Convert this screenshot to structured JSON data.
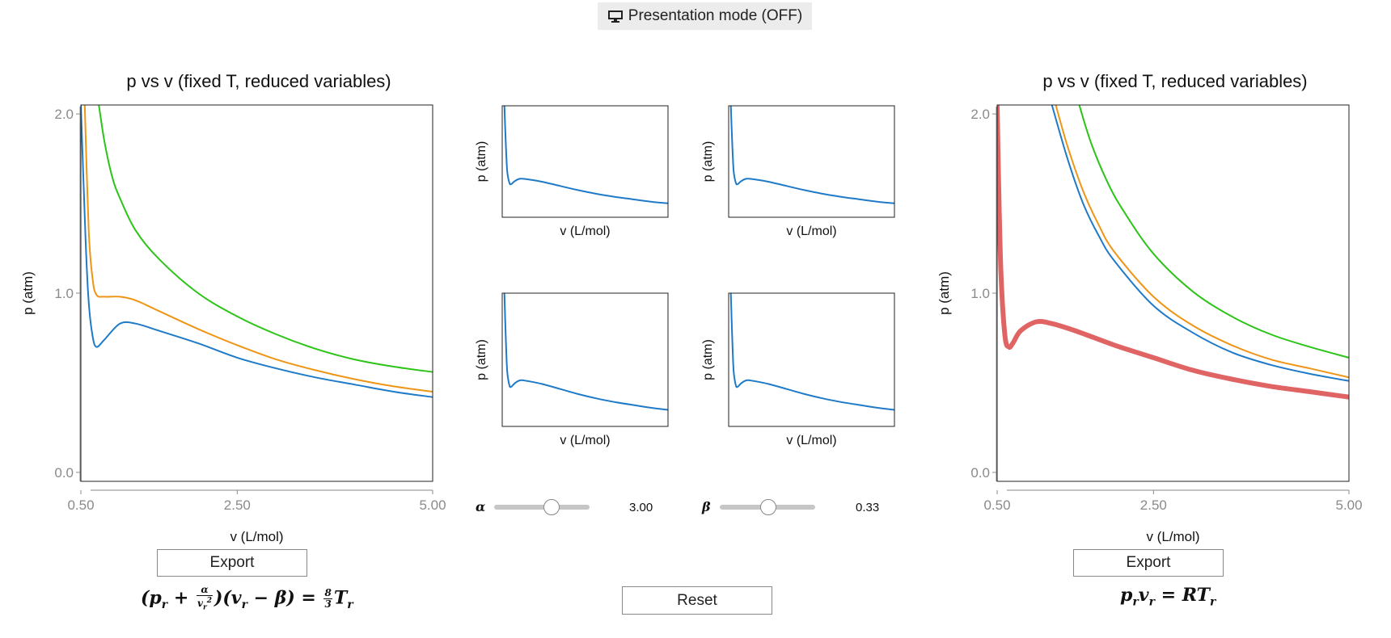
{
  "presentation_button": {
    "icon": "monitor-icon",
    "label": "Presentation mode (OFF)"
  },
  "colors": {
    "blue": "#1f7ac8",
    "orange": "#ef9516",
    "green": "#2cc418",
    "red": "#e06464",
    "axis_gray": "#8a8a8a"
  },
  "left_plot": {
    "title": "p vs v (fixed T, reduced variables)",
    "export_label": "Export",
    "formula": {
      "part1": "(p",
      "sub_r1": "r",
      "plus": " + ",
      "frac_num": "α",
      "frac_den": "v",
      "frac_den_sub": "r",
      "frac_den_sup": "2",
      "part2": ")(v",
      "sub_r2": "r",
      "minus_beta": " − β) = ",
      "frac2_num": "8",
      "frac2_den": "3",
      "T": "T",
      "sub_r3": "r"
    }
  },
  "right_plot": {
    "title": "p vs v (fixed T, reduced variables)",
    "export_label": "Export",
    "formula": {
      "p": "p",
      "sub1": "r",
      "v": "v",
      "sub2": "r",
      "eq": " = RT",
      "sub3": "r"
    }
  },
  "mini_plots": [
    {
      "xlabel": "v (L/mol)",
      "ylabel": "p (atm)"
    },
    {
      "xlabel": "v (L/mol)",
      "ylabel": "p (atm)"
    },
    {
      "xlabel": "v (L/mol)",
      "ylabel": "p (atm)"
    },
    {
      "xlabel": "v (L/mol)",
      "ylabel": "p (atm)"
    }
  ],
  "sliders": {
    "alpha": {
      "label": "α",
      "value": "3.00",
      "fraction": 0.6
    },
    "beta": {
      "label": "β",
      "value": "0.33",
      "fraction": 0.5
    }
  },
  "reset_label": "Reset",
  "chart_data": [
    {
      "type": "line",
      "title": "p vs v (fixed T, reduced variables)",
      "xlabel": "v (L/mol)",
      "ylabel": "p (atm)",
      "xlim": [
        0.5,
        5.0
      ],
      "ylim": [
        -0.05,
        2.05
      ],
      "xticks": [
        "0.50",
        "2.50",
        "5.00"
      ],
      "yticks": [
        "0.0",
        "1.0",
        "2.0"
      ],
      "series": [
        {
          "color": "#1f7ac8",
          "x": [
            0.5,
            0.56,
            0.6,
            0.65,
            0.7,
            0.8,
            1.0,
            1.2,
            1.5,
            2.0,
            2.5,
            3.0,
            3.5,
            4.0,
            4.5,
            5.0
          ],
          "y": [
            2.05,
            1.3,
            0.95,
            0.76,
            0.7,
            0.74,
            0.83,
            0.83,
            0.79,
            0.72,
            0.64,
            0.58,
            0.53,
            0.49,
            0.45,
            0.42
          ]
        },
        {
          "color": "#ef9516",
          "x": [
            0.55,
            0.6,
            0.65,
            0.7,
            0.8,
            1.0,
            1.2,
            1.5,
            2.0,
            2.5,
            3.0,
            3.5,
            4.0,
            4.5,
            5.0
          ],
          "y": [
            2.05,
            1.35,
            1.08,
            0.99,
            0.98,
            0.98,
            0.96,
            0.9,
            0.8,
            0.71,
            0.63,
            0.57,
            0.52,
            0.48,
            0.45
          ]
        },
        {
          "color": "#2cc418",
          "x": [
            0.73,
            0.8,
            0.9,
            1.0,
            1.2,
            1.5,
            2.0,
            2.5,
            3.0,
            3.5,
            4.0,
            4.5,
            5.0
          ],
          "y": [
            2.05,
            1.85,
            1.65,
            1.53,
            1.35,
            1.19,
            1.0,
            0.87,
            0.77,
            0.69,
            0.63,
            0.59,
            0.56
          ]
        }
      ]
    },
    {
      "type": "line",
      "xlabel": "v (L/mol)",
      "ylabel": "p (atm)",
      "xlim": [
        0.4,
        5.0
      ],
      "ylim": [
        0.2,
        2.05
      ],
      "series": [
        {
          "color": "#1f7ac8",
          "x": [
            0.46,
            0.5,
            0.54,
            0.6,
            0.65,
            0.75,
            0.9,
            1.1,
            1.5,
            2.0,
            2.5,
            3.0,
            3.5,
            4.0,
            4.5,
            5.0
          ],
          "y": [
            2.05,
            1.4,
            0.96,
            0.77,
            0.75,
            0.8,
            0.84,
            0.83,
            0.79,
            0.72,
            0.65,
            0.59,
            0.54,
            0.5,
            0.46,
            0.43
          ]
        }
      ]
    },
    {
      "type": "line",
      "xlabel": "v (L/mol)",
      "ylabel": "p (atm)",
      "xlim": [
        0.4,
        5.0
      ],
      "ylim": [
        0.2,
        2.05
      ],
      "series": [
        {
          "color": "#1f7ac8",
          "x": [
            0.46,
            0.5,
            0.54,
            0.6,
            0.65,
            0.75,
            0.9,
            1.1,
            1.5,
            2.0,
            2.5,
            3.0,
            3.5,
            4.0,
            4.5,
            5.0
          ],
          "y": [
            2.05,
            1.4,
            0.96,
            0.77,
            0.75,
            0.8,
            0.84,
            0.83,
            0.79,
            0.72,
            0.65,
            0.59,
            0.54,
            0.5,
            0.46,
            0.43
          ]
        }
      ]
    },
    {
      "type": "line",
      "xlabel": "v (L/mol)",
      "ylabel": "p (atm)",
      "xlim": [
        0.4,
        5.0
      ],
      "ylim": [
        0.2,
        2.05
      ],
      "series": [
        {
          "color": "#1f7ac8",
          "x": [
            0.46,
            0.5,
            0.54,
            0.6,
            0.65,
            0.75,
            0.9,
            1.1,
            1.5,
            2.0,
            2.5,
            3.0,
            3.5,
            4.0,
            4.5,
            5.0
          ],
          "y": [
            2.05,
            1.4,
            0.96,
            0.77,
            0.75,
            0.8,
            0.84,
            0.83,
            0.79,
            0.72,
            0.65,
            0.59,
            0.54,
            0.5,
            0.46,
            0.43
          ]
        }
      ]
    },
    {
      "type": "line",
      "xlabel": "v (L/mol)",
      "ylabel": "p (atm)",
      "xlim": [
        0.4,
        5.0
      ],
      "ylim": [
        0.2,
        2.05
      ],
      "series": [
        {
          "color": "#1f7ac8",
          "x": [
            0.46,
            0.5,
            0.54,
            0.6,
            0.65,
            0.75,
            0.9,
            1.1,
            1.5,
            2.0,
            2.5,
            3.0,
            3.5,
            4.0,
            4.5,
            5.0
          ],
          "y": [
            2.05,
            1.4,
            0.96,
            0.77,
            0.75,
            0.8,
            0.84,
            0.83,
            0.79,
            0.72,
            0.65,
            0.59,
            0.54,
            0.5,
            0.46,
            0.43
          ]
        }
      ]
    },
    {
      "type": "line",
      "title": "p vs v (fixed T, reduced variables)",
      "xlabel": "v (L/mol)",
      "ylabel": "p (atm)",
      "xlim": [
        0.5,
        5.0
      ],
      "ylim": [
        -0.05,
        2.05
      ],
      "xticks": [
        "0.50",
        "2.50",
        "5.00"
      ],
      "yticks": [
        "0.0",
        "1.0",
        "2.0"
      ],
      "series": [
        {
          "color": "#e06464",
          "x": [
            0.5,
            0.52,
            0.55,
            0.6,
            0.65,
            0.7,
            0.8,
            1.0,
            1.2,
            1.5,
            2.0,
            2.5,
            3.0,
            3.5,
            4.0,
            4.5,
            5.0
          ],
          "y": [
            2.05,
            1.6,
            1.1,
            0.76,
            0.7,
            0.72,
            0.79,
            0.84,
            0.83,
            0.79,
            0.71,
            0.64,
            0.57,
            0.52,
            0.48,
            0.45,
            0.42
          ]
        },
        {
          "color": "#1f7ac8",
          "x": [
            1.2,
            1.4,
            1.6,
            1.8,
            2.0,
            2.5,
            3.0,
            3.5,
            4.0,
            4.5,
            5.0
          ],
          "y": [
            2.05,
            1.75,
            1.5,
            1.32,
            1.18,
            0.93,
            0.78,
            0.67,
            0.6,
            0.55,
            0.51
          ]
        },
        {
          "color": "#ef9516",
          "x": [
            1.25,
            1.4,
            1.6,
            1.8,
            2.0,
            2.5,
            3.0,
            3.5,
            4.0,
            4.5,
            5.0
          ],
          "y": [
            2.05,
            1.82,
            1.57,
            1.38,
            1.23,
            0.98,
            0.82,
            0.71,
            0.63,
            0.58,
            0.53
          ]
        },
        {
          "color": "#2cc418",
          "x": [
            1.55,
            1.7,
            1.9,
            2.1,
            2.5,
            3.0,
            3.5,
            4.0,
            4.5,
            5.0
          ],
          "y": [
            2.05,
            1.84,
            1.63,
            1.47,
            1.22,
            1.01,
            0.87,
            0.77,
            0.7,
            0.64
          ]
        }
      ]
    }
  ]
}
